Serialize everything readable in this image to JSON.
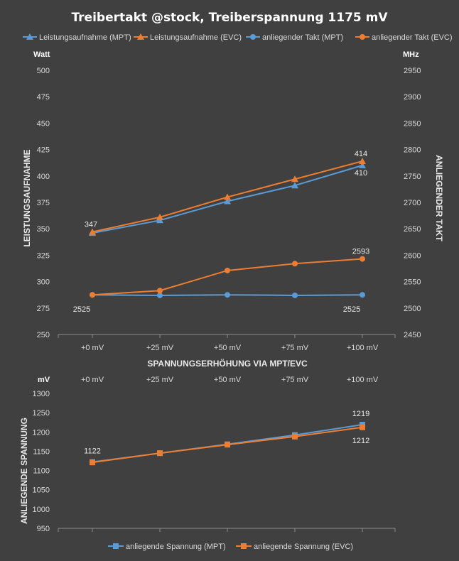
{
  "chart_data": [
    {
      "type": "line",
      "title": "Treibertakt @stock, Treiberspannung 1175 mV",
      "categories": [
        "+0 mV",
        "+25 mV",
        "+50 mV",
        "+75 mV",
        "+100 mV"
      ],
      "xlabel": "SPANNUNGSERHÖHUNG VIA MPT/EVC",
      "ylabel": "LEISTUNGSAUFNAHME",
      "y2label": "ANLIEGENDER TAKT",
      "yunit": "Watt",
      "y2unit": "MHz",
      "ylim": [
        250,
        500
      ],
      "y2lim": [
        2450,
        2950
      ],
      "ystep": 25,
      "y2step": 50,
      "grid": false,
      "legend_position": "top",
      "series": [
        {
          "name": "Leistungsaufnahme (MPT)",
          "axis": "left",
          "marker": "triangle",
          "color": "#5b9bd5",
          "values": [
            346,
            358,
            376,
            391,
            410
          ]
        },
        {
          "name": "Leistungsaufnahme (EVC)",
          "axis": "left",
          "marker": "triangle",
          "color": "#ed7d31",
          "values": [
            347,
            361,
            380,
            397,
            414
          ]
        },
        {
          "name": "anliegender Takt (MPT)",
          "axis": "right",
          "marker": "circle",
          "color": "#5b9bd5",
          "values": [
            2525,
            2524,
            2525,
            2524,
            2525
          ]
        },
        {
          "name": "anliegender Takt (EVC)",
          "axis": "right",
          "marker": "circle",
          "color": "#ed7d31",
          "values": [
            2525,
            2533,
            2571,
            2584,
            2593
          ]
        }
      ],
      "data_labels": [
        {
          "text": "347",
          "series": 1,
          "index": 0
        },
        {
          "text": "414",
          "series": 1,
          "index": 4
        },
        {
          "text": "410",
          "series": 0,
          "index": 4
        },
        {
          "text": "2593",
          "series": 3,
          "index": 4
        },
        {
          "text": "2525",
          "series": 2,
          "index": 0
        },
        {
          "text": "2525",
          "series": 2,
          "index": 4
        }
      ]
    },
    {
      "type": "line",
      "categories": [
        "+0 mV",
        "+25 mV",
        "+50 mV",
        "+75 mV",
        "+100 mV"
      ],
      "ylabel": "ANLIEGENDE SPANNUNG",
      "yunit": "mV",
      "ylim": [
        950,
        1300
      ],
      "ystep": 50,
      "grid": false,
      "legend_position": "bottom",
      "series": [
        {
          "name": "anliegende Spannung (MPT)",
          "marker": "square",
          "color": "#5b9bd5",
          "values": [
            1122,
            1145,
            1168,
            1192,
            1219
          ]
        },
        {
          "name": "anliegende Spannung (EVC)",
          "marker": "square",
          "color": "#ed7d31",
          "values": [
            1121,
            1145,
            1167,
            1188,
            1212
          ]
        }
      ],
      "data_labels": [
        {
          "text": "1122",
          "series": 0,
          "index": 0
        },
        {
          "text": "1219",
          "series": 0,
          "index": 4
        },
        {
          "text": "1212",
          "series": 1,
          "index": 4
        }
      ]
    }
  ]
}
